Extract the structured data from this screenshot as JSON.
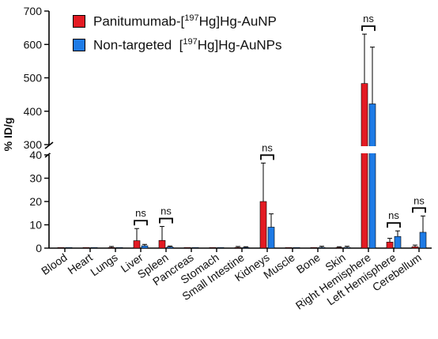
{
  "chart_data": {
    "type": "bar",
    "ylabel": "% ID/g",
    "y_axis_break": {
      "lower_range": [
        0,
        40
      ],
      "upper_range": [
        300,
        700
      ]
    },
    "lower_ticks": [
      0,
      10,
      20,
      30,
      40
    ],
    "upper_ticks": [
      300,
      400,
      500,
      600,
      700
    ],
    "categories": [
      "Blood",
      "Heart",
      "Lungs",
      "Liver",
      "Spleen",
      "Pancreas",
      "Stomach",
      "Small Intestine",
      "Kidneys",
      "Muscle",
      "Bone",
      "Skin",
      "Right Hemisphere",
      "Left Hemisphere",
      "Cerebellum"
    ],
    "series": [
      {
        "name": "Panitumumab-[197Hg]Hg-AuNP",
        "name_parts": {
          "pre": "Panitumumab-[",
          "sup": "197",
          "post": "Hg]Hg-AuNP"
        },
        "color": "#e31b23",
        "values": [
          0.2,
          0.1,
          0.2,
          3.2,
          3.3,
          0.1,
          0.1,
          0.2,
          20,
          0.1,
          0.2,
          0.2,
          483,
          2.6,
          0.6
        ],
        "errors": [
          0.3,
          0.4,
          0.5,
          5.2,
          6.0,
          0.2,
          0.2,
          0.5,
          16.5,
          0.2,
          0.3,
          0.4,
          148,
          1.6,
          0.7
        ]
      },
      {
        "name": "Non-targeted [197Hg]Hg-AuNPs",
        "name_parts": {
          "pre": "Non-targeted  [",
          "sup": "197",
          "post": "Hg]Hg-AuNPs"
        },
        "color": "#1e7be6",
        "values": [
          0.1,
          0.1,
          0.2,
          1.0,
          0.5,
          0.1,
          0.1,
          0.3,
          9,
          0.1,
          0.3,
          0.3,
          422,
          5,
          6.8
        ],
        "errors": [
          0.2,
          0.3,
          0.3,
          0.6,
          0.4,
          0.1,
          0.2,
          0.3,
          5.7,
          0.2,
          0.5,
          0.5,
          170,
          2.4,
          7.0
        ]
      }
    ],
    "annotations": [
      {
        "text": "ns",
        "category": "Liver"
      },
      {
        "text": "ns",
        "category": "Spleen"
      },
      {
        "text": "ns",
        "category": "Kidneys"
      },
      {
        "text": "ns",
        "category": "Right Hemisphere"
      },
      {
        "text": "ns",
        "category": "Left Hemisphere"
      },
      {
        "text": "ns",
        "category": "Cerebellum"
      }
    ]
  }
}
